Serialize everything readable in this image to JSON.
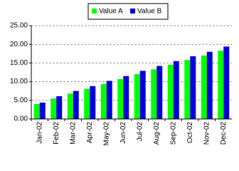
{
  "chart_data": {
    "type": "bar",
    "categories": [
      "Jan-02",
      "Feb-02",
      "Mar-02",
      "Apr-02",
      "May-02",
      "Jun-02",
      "Jul-02",
      "Aug-02",
      "Sep-02",
      "Oct-02",
      "Nov-02",
      "Dec-02"
    ],
    "series": [
      {
        "name": "Value A",
        "color": "#00ff00",
        "values": [
          4.0,
          5.5,
          6.8,
          8.1,
          9.4,
          10.7,
          12.0,
          13.3,
          14.5,
          15.8,
          17.0,
          18.3
        ]
      },
      {
        "name": "Value B",
        "color": "#0000dd",
        "values": [
          4.4,
          6.1,
          7.5,
          8.8,
          10.2,
          11.5,
          12.9,
          14.2,
          15.5,
          16.8,
          18.0,
          19.4
        ]
      }
    ],
    "ylim": [
      0,
      25
    ],
    "yticks": [
      {
        "value": 0,
        "label": "0.00"
      },
      {
        "value": 5,
        "label": "5.00"
      },
      {
        "value": 10,
        "label": "10.00"
      },
      {
        "value": 15,
        "label": "15.00"
      },
      {
        "value": 20,
        "label": "20.00"
      },
      {
        "value": 25,
        "label": "25.00"
      }
    ],
    "grid": true,
    "legend": "top"
  }
}
